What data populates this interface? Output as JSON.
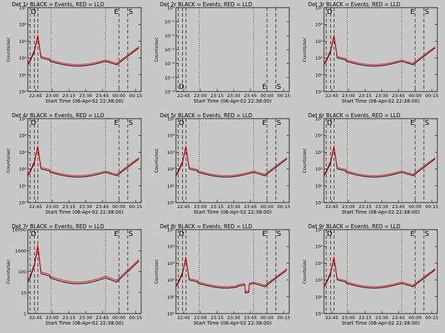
{
  "chart_data": [
    {
      "type": "line",
      "title": "Det 1r BLACK = Events, RED = LLD",
      "xlabel": "Start Time (06-Apr-02 22:38:00)",
      "ylabel": "Counts/sec",
      "yscale": "log",
      "ylim_exp": [
        0,
        5
      ],
      "ytick_labels": [
        "10⁰",
        "10¹",
        "10²",
        "10³",
        "10⁴",
        "10⁵"
      ],
      "xtick_labels": [
        "22:45",
        "23:00",
        "23:15",
        "23:30",
        "23:45",
        "00:00",
        "00:15"
      ],
      "markers": [
        "D",
        "E",
        "S"
      ],
      "profile": "normal",
      "series": [
        {
          "name": "Events",
          "color": "#000000"
        },
        {
          "name": "LLD",
          "color": "#ff0000"
        }
      ],
      "xlim": [
        "22:38",
        "00:20"
      ]
    },
    {
      "type": "line",
      "title": "Det 2r BLACK = Events, RED = LLD",
      "xlabel": "Start Time (06-Apr-02 22:38:00)",
      "ylabel": "Counts/sec",
      "yscale": "log",
      "ylim_exp": [
        -6,
        0
      ],
      "ytick_labels": [
        "10⁻⁶",
        "10⁻⁵",
        "10⁻⁴",
        "10⁻³",
        "10⁻²",
        "10⁻¹",
        "10⁰"
      ],
      "xtick_labels": [
        "22:45",
        "23:00",
        "23:15",
        "23:30",
        "23:45",
        "00:00",
        "00:15"
      ],
      "markers": [
        "D",
        "E",
        "S"
      ],
      "profile": "empty",
      "series": [
        {
          "name": "Events",
          "color": "#000000"
        },
        {
          "name": "LLD",
          "color": "#ff0000"
        }
      ],
      "xlim": [
        "22:38",
        "00:20"
      ]
    },
    {
      "type": "line",
      "title": "Det 3r BLACK = Events, RED = LLD",
      "xlabel": "Start Time (06-Apr-02 22:38:00)",
      "ylabel": "Counts/sec",
      "yscale": "log",
      "ylim_exp": [
        0,
        5
      ],
      "ytick_labels": [
        "10⁰",
        "10¹",
        "10²",
        "10³",
        "10⁴",
        "10⁵"
      ],
      "xtick_labels": [
        "22:45",
        "23:00",
        "23:15",
        "23:30",
        "23:45",
        "00:00",
        "00:15"
      ],
      "markers": [
        "D",
        "E",
        "S"
      ],
      "profile": "normal",
      "series": [
        {
          "name": "Events",
          "color": "#000000"
        },
        {
          "name": "LLD",
          "color": "#ff0000"
        }
      ],
      "xlim": [
        "22:38",
        "00:20"
      ]
    },
    {
      "type": "line",
      "title": "Det 4r BLACK = Events, RED = LLD",
      "xlabel": "Start Time (06-Apr-02 22:38:00)",
      "ylabel": "Counts/sec",
      "yscale": "log",
      "ylim_exp": [
        0,
        5
      ],
      "ytick_labels": [
        "10⁰",
        "10¹",
        "10²",
        "10³",
        "10⁴",
        "10⁵"
      ],
      "xtick_labels": [
        "22:45",
        "23:00",
        "23:15",
        "23:30",
        "23:45",
        "00:00",
        "00:15"
      ],
      "markers": [
        "D",
        "E",
        "S"
      ],
      "profile": "normal",
      "series": [
        {
          "name": "Events",
          "color": "#000000"
        },
        {
          "name": "LLD",
          "color": "#ff0000"
        }
      ],
      "xlim": [
        "22:38",
        "00:20"
      ]
    },
    {
      "type": "line",
      "title": "Det 5r BLACK = Events, RED = LLD",
      "xlabel": "Start Time (06-Apr-02 22:38:00)",
      "ylabel": "Counts/sec",
      "yscale": "log",
      "ylim_exp": [
        0,
        5
      ],
      "ytick_labels": [
        "10⁰",
        "10¹",
        "10²",
        "10³",
        "10⁴",
        "10⁵"
      ],
      "xtick_labels": [
        "22:45",
        "23:00",
        "23:15",
        "23:30",
        "23:45",
        "00:00",
        "00:15"
      ],
      "markers": [
        "D",
        "E",
        "S"
      ],
      "profile": "normal",
      "series": [
        {
          "name": "Events",
          "color": "#000000"
        },
        {
          "name": "LLD",
          "color": "#ff0000"
        }
      ],
      "xlim": [
        "22:38",
        "00:20"
      ]
    },
    {
      "type": "line",
      "title": "Det 6r BLACK = Events, RED = LLD",
      "xlabel": "Start Time (06-Apr-02 22:38:00)",
      "ylabel": "Counts/sec",
      "yscale": "log",
      "ylim_exp": [
        0,
        5
      ],
      "ytick_labels": [
        "10⁰",
        "10¹",
        "10²",
        "10³",
        "10⁴",
        "10⁵"
      ],
      "xtick_labels": [
        "22:45",
        "23:00",
        "23:15",
        "23:30",
        "23:45",
        "00:00",
        "00:15"
      ],
      "markers": [
        "D",
        "E",
        "S"
      ],
      "profile": "normal",
      "series": [
        {
          "name": "Events",
          "color": "#000000"
        },
        {
          "name": "LLD",
          "color": "#ff0000"
        }
      ],
      "xlim": [
        "22:38",
        "00:20"
      ]
    },
    {
      "type": "line",
      "title": "Det 7r BLACK = Events, RED = LLD",
      "xlabel": "Start Time (06-Apr-02 22:38:00)",
      "ylabel": "Counts/sec",
      "yscale": "log",
      "ylim_exp": [
        0,
        4
      ],
      "ytick_labels": [
        "1",
        "10",
        "100",
        "1000",
        "10000"
      ],
      "xtick_labels": [
        "22:45",
        "23:00",
        "23:15",
        "23:30",
        "23:45",
        "00:00",
        "00:15"
      ],
      "markers": [
        "D",
        "E",
        "S"
      ],
      "profile": "normal",
      "series": [
        {
          "name": "Events",
          "color": "#000000"
        },
        {
          "name": "LLD",
          "color": "#ff0000"
        }
      ],
      "xlim": [
        "22:38",
        "00:20"
      ]
    },
    {
      "type": "line",
      "title": "Det 8r BLACK = Events, RED = LLD",
      "xlabel": "Start Time (06-Apr-02 22:38:00)",
      "ylabel": "Counts/sec",
      "yscale": "log",
      "ylim_exp": [
        0,
        5
      ],
      "ytick_labels": [
        "10⁰",
        "10¹",
        "10²",
        "10³",
        "10⁴",
        "10⁵"
      ],
      "xtick_labels": [
        "22:45",
        "23:00",
        "23:15",
        "23:30",
        "23:45",
        "00:00",
        "00:15"
      ],
      "markers": [
        "D",
        "E",
        "S"
      ],
      "profile": "dip",
      "series": [
        {
          "name": "Events",
          "color": "#000000"
        },
        {
          "name": "LLD",
          "color": "#ff0000"
        }
      ],
      "xlim": [
        "22:38",
        "00:20"
      ]
    },
    {
      "type": "line",
      "title": "Det 9r BLACK = Events, RED = LLD",
      "xlabel": "Start Time (06-Apr-02 22:38:00)",
      "ylabel": "Counts/sec",
      "yscale": "log",
      "ylim_exp": [
        0,
        5
      ],
      "ytick_labels": [
        "10⁰",
        "10¹",
        "10²",
        "10³",
        "10⁴",
        "10⁵"
      ],
      "xtick_labels": [
        "22:45",
        "23:00",
        "23:15",
        "23:30",
        "23:45",
        "00:00",
        "00:15"
      ],
      "markers": [
        "D",
        "E",
        "S"
      ],
      "profile": "normal",
      "series": [
        {
          "name": "Events",
          "color": "#000000"
        },
        {
          "name": "LLD",
          "color": "#ff0000"
        }
      ],
      "xlim": [
        "22:38",
        "00:20"
      ]
    }
  ]
}
